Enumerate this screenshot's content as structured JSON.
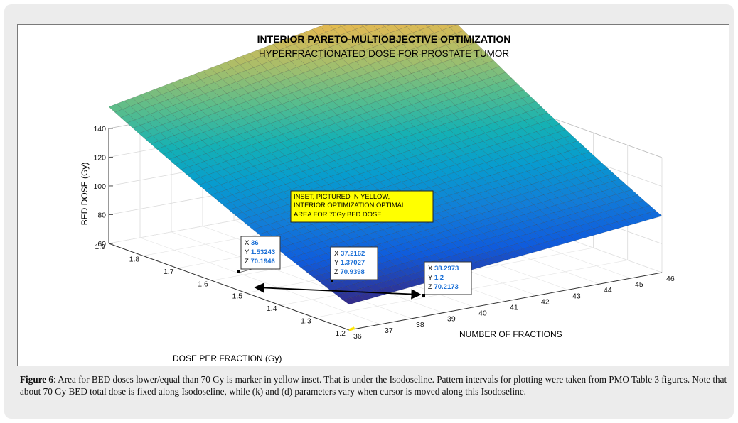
{
  "chart_data": {
    "type": "surface",
    "title": "INTERIOR PARETO-MULTIOBJECTIVE OPTIMIZATION",
    "subtitle": "HYPERFRACTIONATED DOSE FOR PROSTATE TUMOR",
    "xlabel": "NUMBER OF FRACTIONS",
    "ylabel": "DOSE PER FRACTION (Gy)",
    "zlabel": "BED DOSE (Gy)",
    "x_ticks": [
      "36",
      "37",
      "38",
      "39",
      "40",
      "41",
      "42",
      "43",
      "44",
      "45",
      "46"
    ],
    "y_ticks": [
      "1.2",
      "1.3",
      "1.4",
      "1.5",
      "1.6",
      "1.7",
      "1.8",
      "1.9"
    ],
    "z_ticks": [
      "60",
      "80",
      "100",
      "120",
      "140"
    ],
    "xlim": [
      36,
      46
    ],
    "ylim": [
      1.2,
      1.9
    ],
    "zlim": [
      60,
      140
    ],
    "grid": true,
    "colormap": "parula",
    "isodose_bed": 70,
    "datatips": [
      {
        "x": "36",
        "y": "1.53243",
        "z": "70.1946"
      },
      {
        "x": "37.2162",
        "y": "1.37027",
        "z": "70.9398"
      },
      {
        "x": "38.2973",
        "y": "1.2",
        "z": "70.2173"
      }
    ],
    "inset_note": [
      "INSET, PICTURED IN YELLOW,",
      "INTERIOR OPTIMIZATION OPTIMAL",
      "AREA FOR 70Gy BED DOSE"
    ],
    "colors": {
      "inset_fill": "#ffff00",
      "inset_hatch": "#ffe600",
      "datatip_value": "#1a6fd6",
      "arrow": "#000000"
    }
  },
  "caption": {
    "label": "Figure 6",
    "text": ": Area for BED doses lower/equal than 70 Gy is marker in yellow inset. That is under the Isodoseline. Pattern intervals for plotting were taken from PMO Table 3 figures. Note that about 70 Gy BED total dose is fixed along Isodoseline, while (k) and (d) parameters vary when cursor is moved along this Isodoseline."
  }
}
